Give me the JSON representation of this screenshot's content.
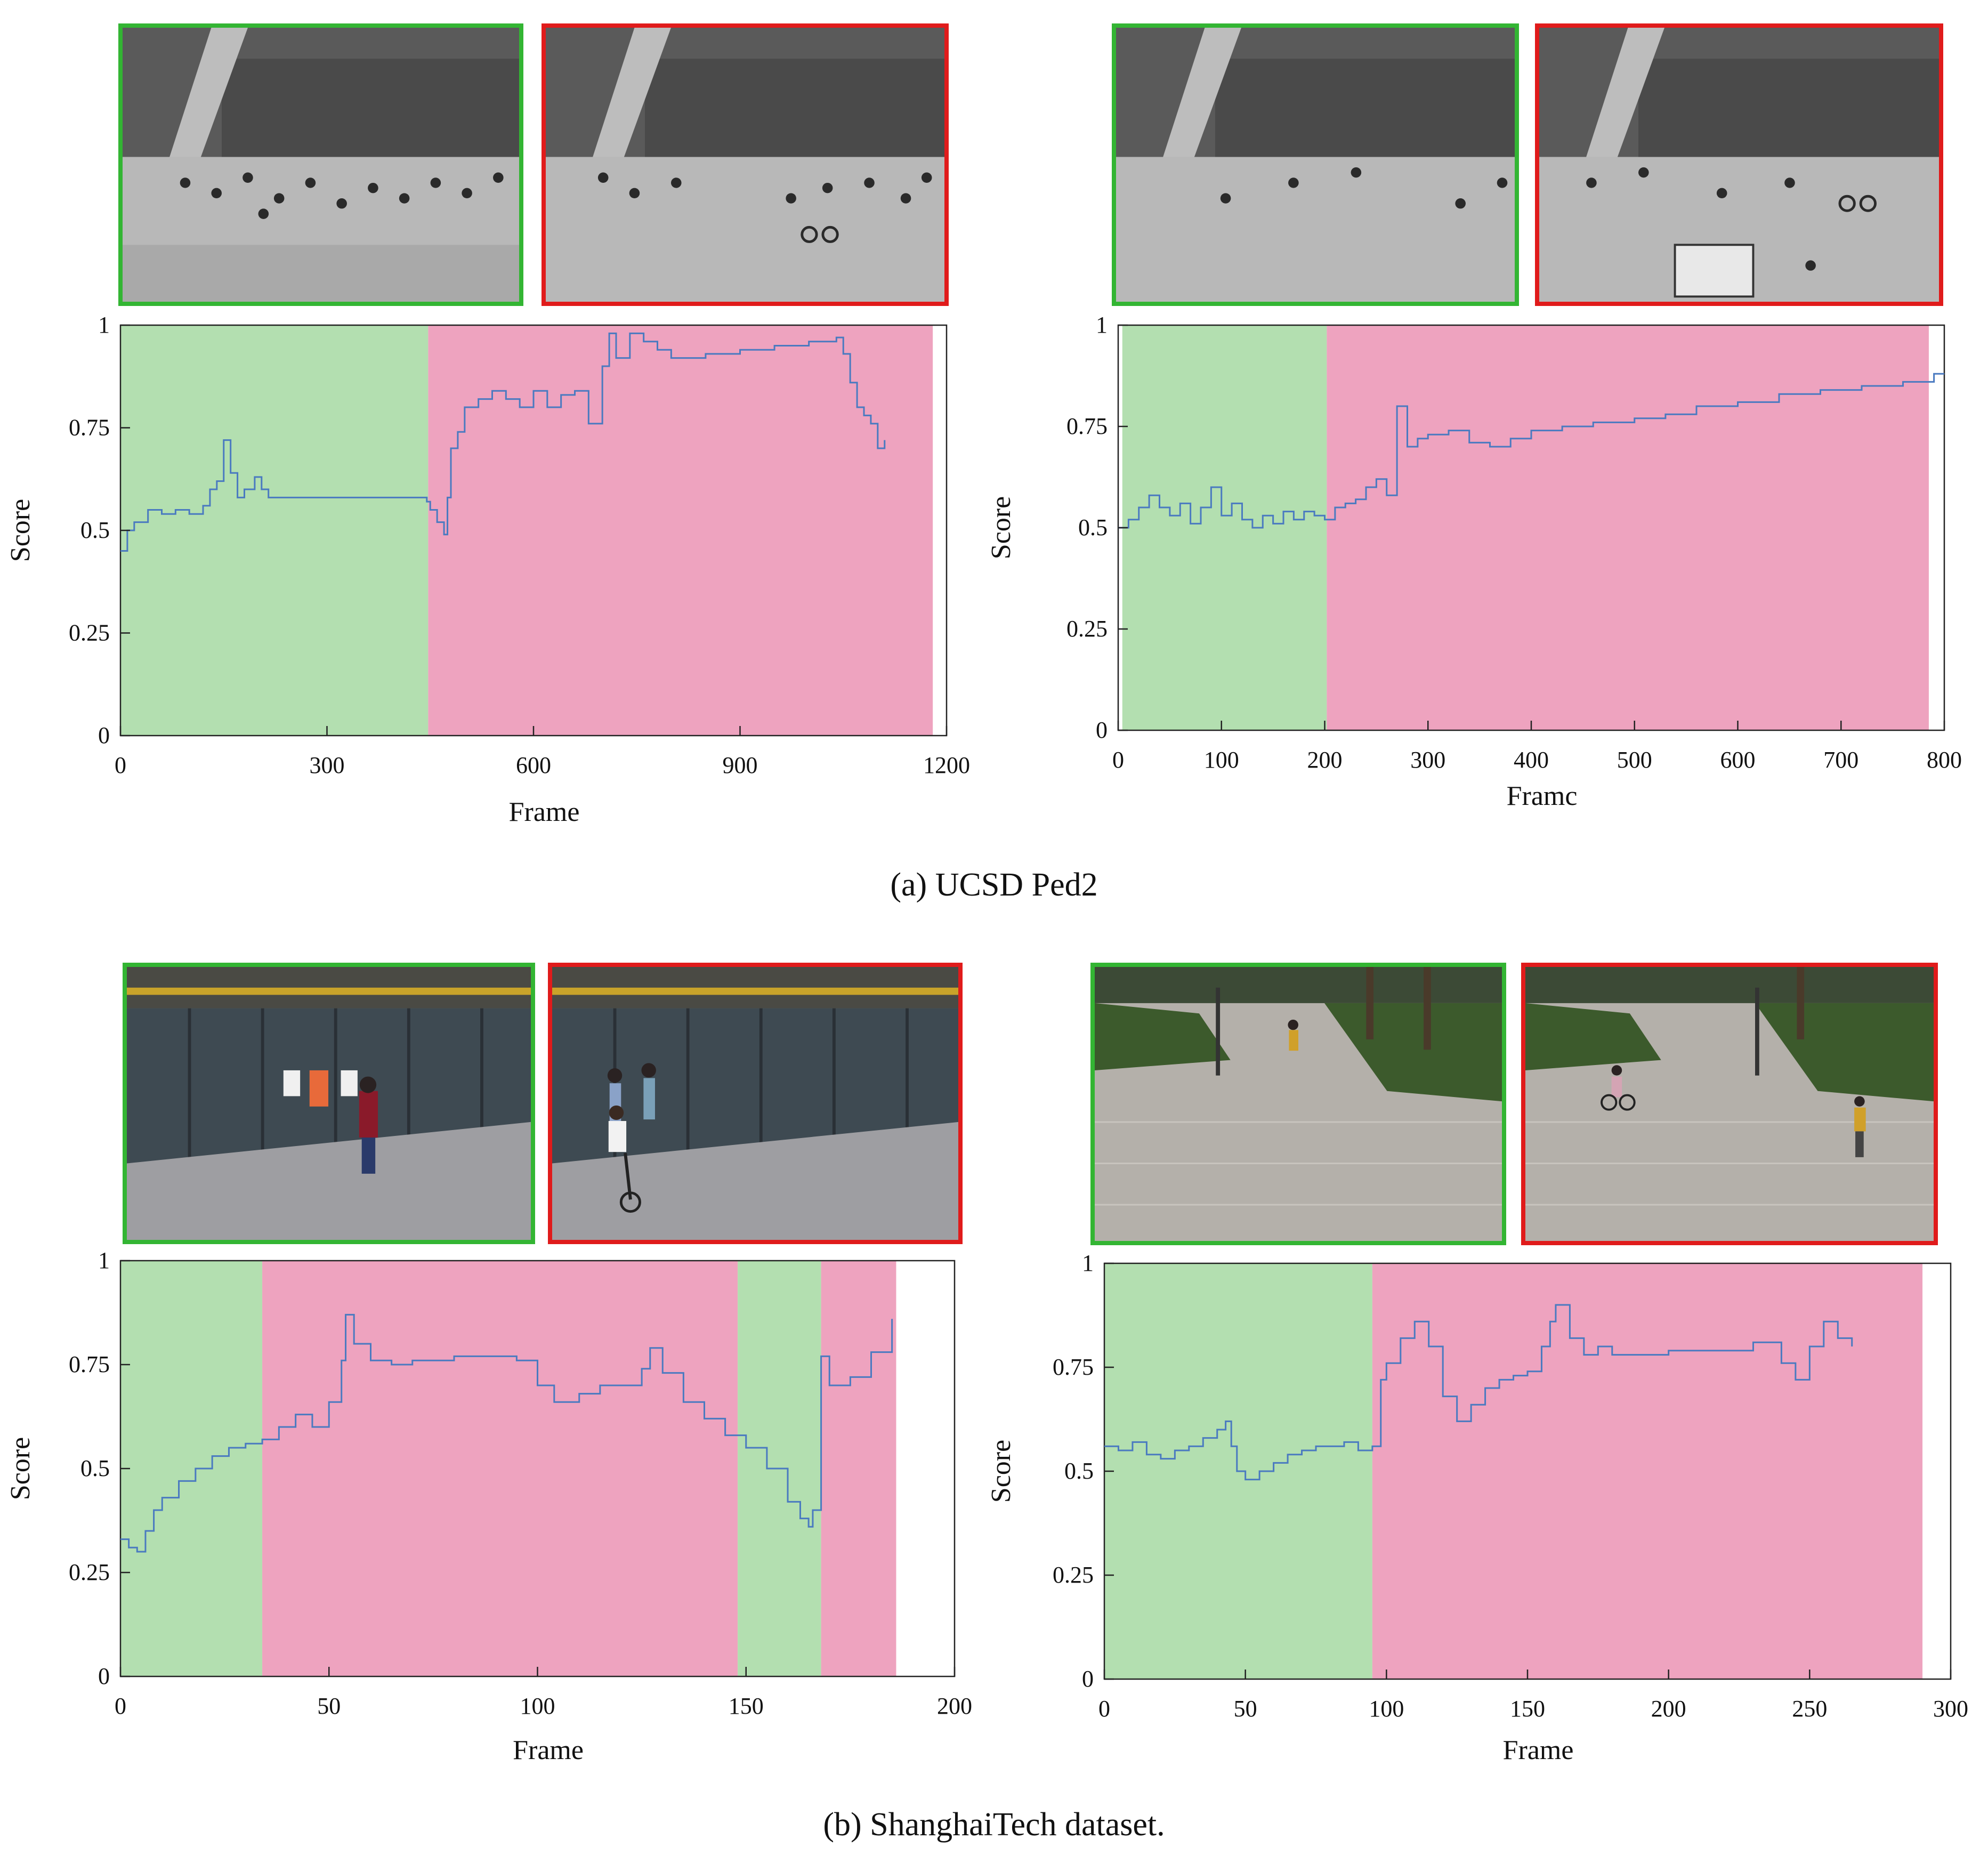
{
  "captions": {
    "a": "(a) UCSD Ped2",
    "b": "(b) ShanghaiTech dataset."
  },
  "colors": {
    "normal_region": "#b3dfb0",
    "abnormal_region": "#eea3bf",
    "score_line": "#4a7ac0",
    "normal_border": "#33b533",
    "abnormal_border": "#e01b1b"
  },
  "thumbnails": [
    {
      "dataset": "UCSD Ped2",
      "kind": "normal",
      "scene": "ped2-walkway"
    },
    {
      "dataset": "UCSD Ped2",
      "kind": "abnormal",
      "scene": "ped2-walkway-bicycle"
    },
    {
      "dataset": "UCSD Ped2",
      "kind": "normal",
      "scene": "ped2-walkway"
    },
    {
      "dataset": "UCSD Ped2",
      "kind": "abnormal",
      "scene": "ped2-walkway-cart"
    },
    {
      "dataset": "ShanghaiTech",
      "kind": "normal",
      "scene": "shanghaitech-storefront"
    },
    {
      "dataset": "ShanghaiTech",
      "kind": "abnormal",
      "scene": "shanghaitech-storefront-bicycle"
    },
    {
      "dataset": "ShanghaiTech",
      "kind": "normal",
      "scene": "shanghaitech-plaza"
    },
    {
      "dataset": "ShanghaiTech",
      "kind": "abnormal",
      "scene": "shanghaitech-plaza-bicycle"
    }
  ],
  "chart_data": [
    {
      "type": "line",
      "xlabel": "Frame",
      "ylabel": "Score",
      "xlim": [
        0,
        1200
      ],
      "ylim": [
        0,
        1
      ],
      "xticks": [
        0,
        300,
        600,
        900,
        1200
      ],
      "yticks": [
        0,
        0.25,
        0.5,
        0.75,
        1
      ],
      "ytick_labels": [
        "0",
        "0.25",
        "0.5",
        "0.75",
        "1"
      ],
      "grid": false,
      "regions": [
        {
          "label": "normal",
          "start": 0,
          "end": 447
        },
        {
          "label": "abnormal",
          "start": 447,
          "end": 1180
        }
      ],
      "series": [
        {
          "x": [
            0,
            10,
            20,
            40,
            60,
            80,
            100,
            120,
            130,
            140,
            150,
            160,
            170,
            180,
            195,
            205,
            215,
            225,
            300,
            400,
            445,
            450,
            460,
            470,
            475,
            480,
            490,
            500,
            520,
            540,
            560,
            580,
            600,
            620,
            640,
            660,
            680,
            700,
            710,
            720,
            740,
            760,
            780,
            800,
            850,
            900,
            950,
            1000,
            1040,
            1050,
            1060,
            1070,
            1080,
            1090,
            1100,
            1110
          ],
          "values": [
            0.45,
            0.5,
            0.52,
            0.55,
            0.54,
            0.55,
            0.54,
            0.56,
            0.6,
            0.62,
            0.72,
            0.64,
            0.58,
            0.6,
            0.63,
            0.6,
            0.58,
            0.58,
            0.58,
            0.58,
            0.57,
            0.55,
            0.52,
            0.49,
            0.58,
            0.7,
            0.74,
            0.8,
            0.82,
            0.84,
            0.82,
            0.8,
            0.84,
            0.8,
            0.83,
            0.84,
            0.76,
            0.9,
            0.98,
            0.92,
            0.98,
            0.96,
            0.94,
            0.92,
            0.93,
            0.94,
            0.95,
            0.96,
            0.97,
            0.93,
            0.86,
            0.8,
            0.78,
            0.76,
            0.7,
            0.72
          ]
        }
      ]
    },
    {
      "type": "line",
      "xlabel": "Framc",
      "ylabel": "Score",
      "xlim": [
        0,
        800
      ],
      "ylim": [
        0,
        1
      ],
      "xticks": [
        0,
        100,
        200,
        300,
        400,
        500,
        600,
        700,
        800
      ],
      "yticks": [
        0,
        0.25,
        0.5,
        0.75,
        1
      ],
      "ytick_labels": [
        "0",
        "0.25",
        "0.5",
        "0.75",
        "1"
      ],
      "grid": false,
      "regions": [
        {
          "label": "normal",
          "start": 4,
          "end": 202
        },
        {
          "label": "abnormal",
          "start": 202,
          "end": 785
        }
      ],
      "series": [
        {
          "x": [
            0,
            10,
            20,
            30,
            40,
            50,
            60,
            70,
            80,
            90,
            100,
            110,
            120,
            130,
            140,
            150,
            160,
            170,
            180,
            190,
            200,
            210,
            220,
            230,
            240,
            250,
            260,
            270,
            280,
            290,
            300,
            320,
            340,
            360,
            380,
            400,
            430,
            460,
            500,
            530,
            560,
            600,
            640,
            680,
            720,
            760,
            790,
            800
          ],
          "values": [
            0.5,
            0.52,
            0.55,
            0.58,
            0.55,
            0.53,
            0.56,
            0.51,
            0.55,
            0.6,
            0.53,
            0.56,
            0.52,
            0.5,
            0.53,
            0.51,
            0.54,
            0.52,
            0.54,
            0.53,
            0.52,
            0.55,
            0.56,
            0.57,
            0.6,
            0.62,
            0.58,
            0.8,
            0.7,
            0.72,
            0.73,
            0.74,
            0.71,
            0.7,
            0.72,
            0.74,
            0.75,
            0.76,
            0.77,
            0.78,
            0.8,
            0.81,
            0.83,
            0.84,
            0.85,
            0.86,
            0.88,
            0.88
          ]
        }
      ]
    },
    {
      "type": "line",
      "xlabel": "Frame",
      "ylabel": "Score",
      "xlim": [
        0,
        200
      ],
      "ylim": [
        0,
        1
      ],
      "xticks": [
        0,
        50,
        100,
        150,
        200
      ],
      "yticks": [
        0,
        0.25,
        0.5,
        0.75,
        1
      ],
      "ytick_labels": [
        "0",
        "0.25",
        "0.5",
        "0.75",
        "1"
      ],
      "grid": false,
      "regions": [
        {
          "label": "normal",
          "start": 0,
          "end": 34
        },
        {
          "label": "abnormal",
          "start": 34,
          "end": 148
        },
        {
          "label": "normal",
          "start": 148,
          "end": 168
        },
        {
          "label": "abnormal",
          "start": 168,
          "end": 186
        }
      ],
      "series": [
        {
          "x": [
            0,
            2,
            4,
            6,
            8,
            10,
            14,
            18,
            22,
            26,
            30,
            34,
            38,
            42,
            46,
            50,
            53,
            54,
            56,
            60,
            65,
            70,
            80,
            90,
            95,
            100,
            104,
            110,
            115,
            120,
            125,
            127,
            130,
            135,
            140,
            145,
            150,
            155,
            160,
            163,
            165,
            166,
            168,
            170,
            175,
            180,
            185
          ],
          "values": [
            0.33,
            0.31,
            0.3,
            0.35,
            0.4,
            0.43,
            0.47,
            0.5,
            0.53,
            0.55,
            0.56,
            0.57,
            0.6,
            0.63,
            0.6,
            0.66,
            0.76,
            0.87,
            0.8,
            0.76,
            0.75,
            0.76,
            0.77,
            0.77,
            0.76,
            0.7,
            0.66,
            0.68,
            0.7,
            0.7,
            0.74,
            0.79,
            0.73,
            0.66,
            0.62,
            0.58,
            0.55,
            0.5,
            0.42,
            0.38,
            0.36,
            0.4,
            0.77,
            0.7,
            0.72,
            0.78,
            0.86
          ]
        }
      ]
    },
    {
      "type": "line",
      "xlabel": "Frame",
      "ylabel": "Score",
      "xlim": [
        0,
        300
      ],
      "ylim": [
        0,
        1
      ],
      "xticks": [
        0,
        50,
        100,
        150,
        200,
        250,
        300
      ],
      "yticks": [
        0,
        0.25,
        0.5,
        0.75,
        1
      ],
      "ytick_labels": [
        "0",
        "0.25",
        "0.5",
        "0.75",
        "1"
      ],
      "grid": false,
      "regions": [
        {
          "label": "normal",
          "start": 0,
          "end": 95
        },
        {
          "label": "abnormal",
          "start": 95,
          "end": 290
        }
      ],
      "series": [
        {
          "x": [
            0,
            5,
            10,
            15,
            20,
            25,
            30,
            35,
            40,
            43,
            45,
            47,
            50,
            55,
            60,
            65,
            70,
            75,
            80,
            85,
            90,
            93,
            95,
            98,
            100,
            105,
            110,
            115,
            120,
            125,
            130,
            135,
            140,
            145,
            150,
            155,
            158,
            160,
            165,
            170,
            175,
            180,
            200,
            230,
            240,
            245,
            250,
            255,
            260,
            265
          ],
          "values": [
            0.56,
            0.55,
            0.57,
            0.54,
            0.53,
            0.55,
            0.56,
            0.58,
            0.6,
            0.62,
            0.56,
            0.5,
            0.48,
            0.5,
            0.52,
            0.54,
            0.55,
            0.56,
            0.56,
            0.57,
            0.55,
            0.55,
            0.56,
            0.72,
            0.76,
            0.82,
            0.86,
            0.8,
            0.68,
            0.62,
            0.66,
            0.7,
            0.72,
            0.73,
            0.74,
            0.8,
            0.86,
            0.9,
            0.82,
            0.78,
            0.8,
            0.78,
            0.79,
            0.81,
            0.76,
            0.72,
            0.8,
            0.86,
            0.82,
            0.8
          ]
        }
      ]
    }
  ]
}
